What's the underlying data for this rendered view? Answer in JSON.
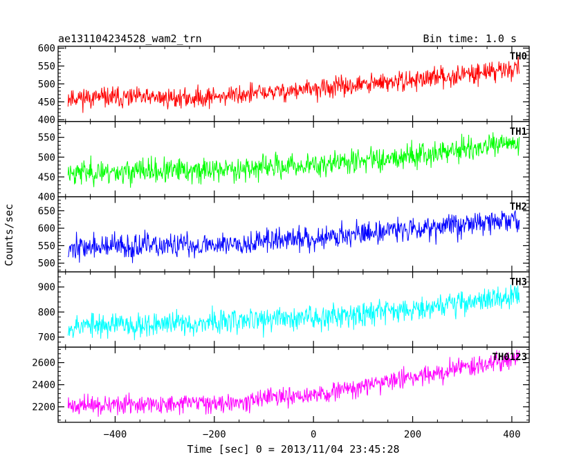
{
  "chart_data": {
    "type": "line",
    "title": "ae131104234528_wam2_trn",
    "subtitle": "Bin time: 1.0 s",
    "xlabel": "Time [sec] 0 = 2013/11/04 23:45:28",
    "ylabel": "Counts/sec",
    "xlim": [
      -515,
      435
    ],
    "x_range": [
      -495,
      415
    ],
    "x_ticks": [
      -400,
      -200,
      0,
      200,
      400
    ],
    "x_tick_labels": [
      "−400",
      "−200",
      "0",
      "200",
      "400"
    ],
    "grid": false,
    "panels": [
      {
        "name": "TH0",
        "color": "#ff0000",
        "ylim": [
          395,
          605
        ],
        "y_ticks": [
          400,
          450,
          500,
          550,
          600
        ],
        "y_tick_labels": [
          "400",
          "450",
          "500",
          "550",
          "600"
        ],
        "trend": [
          [
            -495,
            462
          ],
          [
            -250,
            460
          ],
          [
            0,
            485
          ],
          [
            200,
            510
          ],
          [
            415,
            545
          ]
        ],
        "noise": 20,
        "seed": 11
      },
      {
        "name": "TH1",
        "color": "#00ff00",
        "ylim": [
          400,
          590
        ],
        "y_ticks": [
          400,
          450,
          500,
          550
        ],
        "y_tick_labels": [
          "400",
          "450",
          "500",
          "550"
        ],
        "trend": [
          [
            -495,
            462
          ],
          [
            -250,
            465
          ],
          [
            0,
            480
          ],
          [
            200,
            505
          ],
          [
            415,
            535
          ]
        ],
        "noise": 22,
        "seed": 23
      },
      {
        "name": "TH2",
        "color": "#0000ff",
        "ylim": [
          475,
          690
        ],
        "y_ticks": [
          500,
          550,
          600,
          650
        ],
        "y_tick_labels": [
          "500",
          "550",
          "600",
          "650"
        ],
        "trend": [
          [
            -495,
            545
          ],
          [
            -250,
            550
          ],
          [
            0,
            572
          ],
          [
            200,
            600
          ],
          [
            415,
            625
          ]
        ],
        "noise": 25,
        "seed": 37
      },
      {
        "name": "TH3",
        "color": "#00ffff",
        "ylim": [
          660,
          960
        ],
        "y_ticks": [
          700,
          800,
          900
        ],
        "y_tick_labels": [
          "700",
          "800",
          "900"
        ],
        "trend": [
          [
            -495,
            745
          ],
          [
            -250,
            755
          ],
          [
            0,
            780
          ],
          [
            200,
            815
          ],
          [
            415,
            865
          ]
        ],
        "noise": 35,
        "seed": 53
      },
      {
        "name": "TH0123",
        "color": "#ff00ff",
        "ylim": [
          2060,
          2740
        ],
        "y_ticks": [
          2200,
          2400,
          2600
        ],
        "y_tick_labels": [
          "2200",
          "2400",
          "2600"
        ],
        "trend": [
          [
            -495,
            2210
          ],
          [
            -250,
            2225
          ],
          [
            0,
            2300
          ],
          [
            200,
            2470
          ],
          [
            415,
            2650
          ]
        ],
        "noise": 60,
        "seed": 71
      }
    ]
  }
}
